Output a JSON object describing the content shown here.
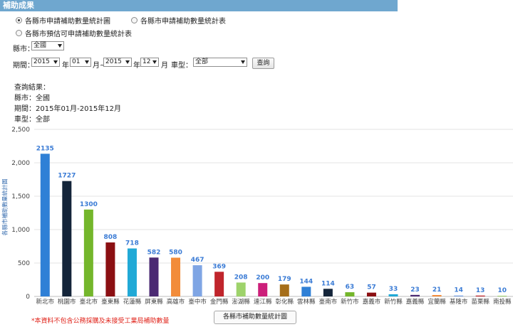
{
  "header": {
    "title": "補助成果"
  },
  "view_options": [
    {
      "label": "各縣市申請補助數量統計圖",
      "checked": true
    },
    {
      "label": "各縣市申請補助數量統計表",
      "checked": false
    },
    {
      "label": "各縣市預估可申請補助數量統計表",
      "checked": false
    }
  ],
  "filters": {
    "county_label": "縣市：",
    "county_value": "全國",
    "period_label": "期間：",
    "start_year": "2015",
    "year_unit": "年",
    "start_month": "01",
    "month_unit_to": "月~",
    "end_year": "2015",
    "end_month": "12",
    "month_unit": "月",
    "vehicle_label": "車型：",
    "vehicle_value": "全部",
    "query_button": "查詢"
  },
  "results": {
    "heading": "查詢結果：",
    "county_line": "縣市：全國",
    "period_line": "期間：2015年01月-2015年12月",
    "vehicle_line": "車型：全部"
  },
  "chart_data": {
    "type": "bar",
    "title": "",
    "ylabel": "各縣市補助數量統計圖",
    "xlabel": "",
    "ylim": [
      0,
      2500
    ],
    "yticks": [
      "0",
      "500",
      "1,000",
      "1,500",
      "2,000",
      "2,500"
    ],
    "grid": true,
    "categories": [
      "新北市",
      "桃園市",
      "臺北市",
      "臺東縣",
      "花蓮縣",
      "屏東縣",
      "高雄市",
      "臺中市",
      "金門縣",
      "澎湖縣",
      "連江縣",
      "彰化縣",
      "雲林縣",
      "臺南市",
      "新竹市",
      "嘉義市",
      "新竹縣",
      "嘉義縣",
      "宜蘭縣",
      "基隆市",
      "苗栗縣",
      "南投縣"
    ],
    "values": [
      2135,
      1727,
      1300,
      808,
      718,
      582,
      580,
      467,
      369,
      208,
      200,
      179,
      144,
      114,
      63,
      57,
      33,
      23,
      21,
      14,
      13,
      10
    ],
    "colors": [
      "#2f80d6",
      "#14253a",
      "#74b62b",
      "#8b0f12",
      "#21a9d6",
      "#4b2a73",
      "#f28c3a",
      "#7fa5e4",
      "#c0252c",
      "#9ed36b",
      "#cc1f7a",
      "#a56e1a",
      "#2f80d6",
      "#14253a",
      "#74b62b",
      "#8b0f12",
      "#21a9d6",
      "#4b2a73",
      "#f28c3a",
      "#7fa5e4",
      "#c0252c",
      "#9ed36b"
    ]
  },
  "footer": {
    "note": "*本資料不包含公務採購及未接受工業局補助數量",
    "chart_button": "各縣市補助數量統計圖"
  }
}
